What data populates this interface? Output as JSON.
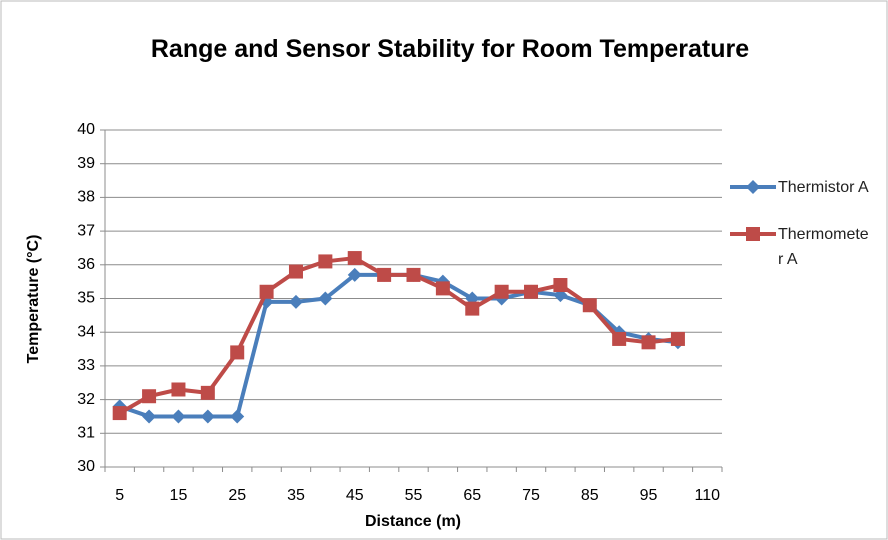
{
  "chart_data": {
    "type": "line",
    "title": "Range and Sensor Stability for Room Temperature",
    "x_label": "Distance  (m)",
    "y_label": "Temperature (°C)",
    "categories": [
      5,
      null,
      15,
      null,
      25,
      null,
      35,
      null,
      45,
      null,
      55,
      null,
      65,
      null,
      75,
      null,
      85,
      null,
      95,
      null,
      110
    ],
    "series": [
      {
        "name": "Thermistor A",
        "color": "#4a7ebb",
        "marker": "diamond",
        "values": [
          31.8,
          31.5,
          31.5,
          31.5,
          31.5,
          34.9,
          34.9,
          35.0,
          35.7,
          35.7,
          35.7,
          35.5,
          35.0,
          35.0,
          35.2,
          35.1,
          34.8,
          34.0,
          33.8,
          33.7,
          null
        ]
      },
      {
        "name": "Thermometer A",
        "color": "#be4b48",
        "marker": "square",
        "values": [
          31.6,
          32.1,
          32.3,
          32.2,
          33.4,
          35.2,
          35.8,
          36.1,
          36.2,
          35.7,
          35.7,
          35.3,
          34.7,
          35.2,
          35.2,
          35.4,
          34.8,
          33.8,
          33.7,
          33.8,
          null
        ]
      }
    ],
    "ylim": [
      30,
      40
    ],
    "yticks": [
      30,
      31,
      32,
      33,
      34,
      35,
      36,
      37,
      38,
      39,
      40
    ],
    "grid": true,
    "legend": "right"
  }
}
